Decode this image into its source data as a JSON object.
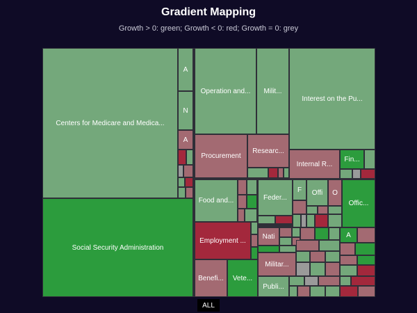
{
  "header": {
    "title": "Gradient Mapping",
    "subtitle": "Growth > 0: green; Growth < 0: red; Growth = 0: grey"
  },
  "footer": {
    "reset_label": "ALL"
  },
  "colors": {
    "background": "#0f0b26",
    "positive_light": "#74a87b",
    "positive_strong": "#2c9c3d",
    "negative_light": "#a36a72",
    "negative_strong": "#a3283c",
    "neutral": "#9a9a9a"
  },
  "chart_data": {
    "type": "treemap",
    "title": "Gradient Mapping",
    "color_rule": "Growth > 0: green; Growth < 0: red; Growth = 0: grey",
    "items": [
      {
        "label": "Centers for Medicare and Medica...",
        "sign": "positive",
        "intensity": 0.2
      },
      {
        "label": "A",
        "sign": "positive",
        "intensity": 0.2
      },
      {
        "label": "N",
        "sign": "positive",
        "intensity": 0.2
      },
      {
        "label": "A",
        "sign": "negative",
        "intensity": 0.2
      },
      {
        "label": "Social Security Administration",
        "sign": "positive",
        "intensity": 0.85
      },
      {
        "label": "Operation and...",
        "sign": "positive",
        "intensity": 0.2
      },
      {
        "label": "Milit...",
        "sign": "positive",
        "intensity": 0.2
      },
      {
        "label": "Procurement",
        "sign": "negative",
        "intensity": 0.25
      },
      {
        "label": "Researc...",
        "sign": "negative",
        "intensity": 0.25
      },
      {
        "label": "Interest on the Pu...",
        "sign": "positive",
        "intensity": 0.2
      },
      {
        "label": "Internal R...",
        "sign": "negative",
        "intensity": 0.3
      },
      {
        "label": "Fin...",
        "sign": "positive",
        "intensity": 0.8
      },
      {
        "label": "Food and...",
        "sign": "positive",
        "intensity": 0.25
      },
      {
        "label": "Feder...",
        "sign": "positive",
        "intensity": 0.2
      },
      {
        "label": "F",
        "sign": "positive",
        "intensity": 0.3
      },
      {
        "label": "Offi",
        "sign": "positive",
        "intensity": 0.2
      },
      {
        "label": "O",
        "sign": "negative",
        "intensity": 0.35
      },
      {
        "label": "Offic...",
        "sign": "positive",
        "intensity": 0.85
      },
      {
        "label": "Employment ...",
        "sign": "negative",
        "intensity": 0.85
      },
      {
        "label": "Nati",
        "sign": "negative",
        "intensity": 0.25
      },
      {
        "label": "A",
        "sign": "positive",
        "intensity": 0.85
      },
      {
        "label": "Militar...",
        "sign": "negative",
        "intensity": 0.25
      },
      {
        "label": "Benefi...",
        "sign": "negative",
        "intensity": 0.25
      },
      {
        "label": "Vete...",
        "sign": "positive",
        "intensity": 0.85
      },
      {
        "label": "Publi...",
        "sign": "positive",
        "intensity": 0.2
      }
    ],
    "minor_cells": [
      "negative",
      "positive",
      "neutral",
      "negative",
      "positive",
      "negative",
      "positive",
      "negative",
      "positive",
      "positive",
      "negative",
      "negative",
      "positive",
      "positive",
      "neutral",
      "negative",
      "positive",
      "negative",
      "positive",
      "negative",
      "positive",
      "negative",
      "positive",
      "positive",
      "negative",
      "positive",
      "negative",
      "positive",
      "neutral",
      "positive",
      "negative",
      "positive",
      "negative",
      "positive",
      "positive",
      "negative",
      "positive",
      "negative",
      "positive",
      "negative",
      "positive",
      "positive",
      "negative",
      "positive",
      "negative",
      "positive",
      "positive",
      "negative",
      "positive",
      "negative",
      "positive",
      "positive",
      "negative",
      "positive",
      "negative",
      "positive",
      "neutral",
      "positive",
      "negative",
      "positive"
    ]
  }
}
